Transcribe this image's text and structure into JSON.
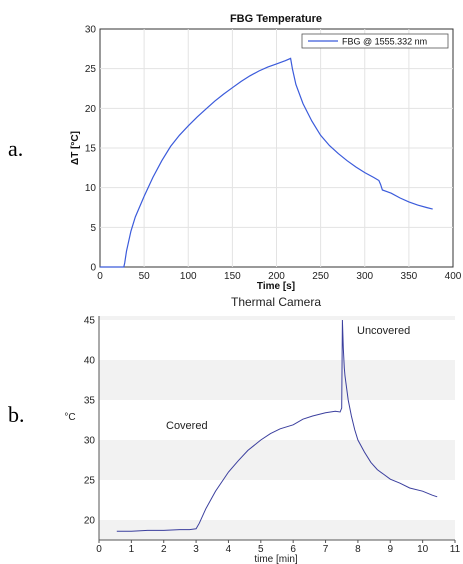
{
  "panel_labels": {
    "a": "a.",
    "b": "b."
  },
  "chart_data": [
    {
      "type": "line",
      "title": "FBG Temperature",
      "xlabel": "Time [s]",
      "ylabel": "ΔT [°C]",
      "xlim": [
        0,
        400
      ],
      "ylim": [
        0,
        30
      ],
      "xticks": [
        0,
        50,
        100,
        150,
        200,
        250,
        300,
        350,
        400
      ],
      "yticks": [
        0,
        5,
        10,
        15,
        20,
        25,
        30
      ],
      "grid": true,
      "legend_position": "top-right",
      "series": [
        {
          "name": "FBG @ 1555.332 nm",
          "color": "#3b5bdb",
          "x": [
            0,
            10,
            20,
            27,
            28,
            30,
            35,
            40,
            50,
            60,
            70,
            80,
            90,
            100,
            110,
            120,
            130,
            140,
            150,
            160,
            170,
            180,
            190,
            200,
            210,
            216,
            218,
            222,
            230,
            240,
            250,
            260,
            270,
            280,
            290,
            300,
            310,
            316,
            318,
            320,
            325,
            330,
            340,
            350,
            360,
            370,
            377
          ],
          "y": [
            0,
            0,
            0,
            0,
            0.5,
            2,
            4.5,
            6.3,
            8.9,
            11.3,
            13.4,
            15.2,
            16.6,
            17.8,
            18.9,
            19.9,
            20.9,
            21.8,
            22.6,
            23.4,
            24.1,
            24.7,
            25.2,
            25.6,
            26.0,
            26.3,
            25.0,
            23.0,
            20.6,
            18.4,
            16.6,
            15.3,
            14.3,
            13.4,
            12.6,
            11.9,
            11.3,
            10.9,
            10.4,
            9.7,
            9.5,
            9.3,
            8.7,
            8.2,
            7.8,
            7.5,
            7.3
          ]
        }
      ]
    },
    {
      "type": "line",
      "title": "Thermal Camera",
      "xlabel": "time [min]",
      "ylabel": "°C",
      "xlim": [
        0,
        11
      ],
      "ylim": [
        17.5,
        45.5
      ],
      "xticks": [
        0,
        1,
        2,
        3,
        4,
        5,
        6,
        7,
        8,
        9,
        10,
        11
      ],
      "yticks": [
        20,
        25,
        30,
        35,
        40,
        45
      ],
      "grid": false,
      "annotations": [
        "Covered",
        "Uncovered"
      ],
      "series": [
        {
          "color": "#3b3f9e",
          "x": [
            0.55,
            1.0,
            1.5,
            2.0,
            2.5,
            2.8,
            3.0,
            3.1,
            3.3,
            3.6,
            4.0,
            4.3,
            4.6,
            5.0,
            5.3,
            5.6,
            6.0,
            6.3,
            6.6,
            7.0,
            7.3,
            7.45,
            7.5,
            7.52,
            7.55,
            7.58,
            7.6,
            7.65,
            7.7,
            7.8,
            7.9,
            8.0,
            8.2,
            8.4,
            8.6,
            8.8,
            9.0,
            9.3,
            9.6,
            10.0,
            10.3,
            10.45
          ],
          "y": [
            18.6,
            18.6,
            18.7,
            18.7,
            18.8,
            18.8,
            18.9,
            19.6,
            21.4,
            23.6,
            26.0,
            27.4,
            28.7,
            30.0,
            30.8,
            31.4,
            31.9,
            32.6,
            33.0,
            33.4,
            33.6,
            33.5,
            34.0,
            45.0,
            41.5,
            39.0,
            38.0,
            36.5,
            35.0,
            33.0,
            31.3,
            30.0,
            28.5,
            27.2,
            26.3,
            25.7,
            25.1,
            24.6,
            24.0,
            23.6,
            23.1,
            22.9
          ]
        }
      ]
    }
  ]
}
